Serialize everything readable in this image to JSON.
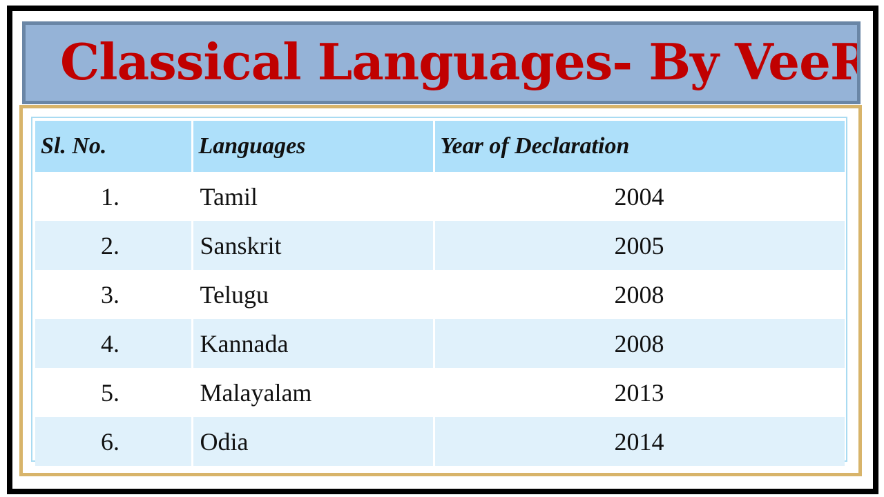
{
  "title": "Classical Languages- By VeeR",
  "table": {
    "headers": [
      "Sl. No.",
      "Languages",
      "Year of Declaration"
    ],
    "rows": [
      {
        "sl": "1.",
        "language": "Tamil",
        "year": "2004"
      },
      {
        "sl": "2.",
        "language": "Sanskrit",
        "year": "2005"
      },
      {
        "sl": "3.",
        "language": "Telugu",
        "year": "2008"
      },
      {
        "sl": "4.",
        "language": "Kannada",
        "year": "2008"
      },
      {
        "sl": "5.",
        "language": "Malayalam",
        "year": "2013"
      },
      {
        "sl": "6.",
        "language": "Odia",
        "year": "2014"
      }
    ]
  },
  "colors": {
    "title_text": "#c00000",
    "banner_background": "#95b3d7",
    "banner_border": "#6a86a6",
    "outer_border": "#000000",
    "table_border": "#d8b46a",
    "header_background": "#aee0fa",
    "alt_row_background": "#e0f1fb"
  }
}
